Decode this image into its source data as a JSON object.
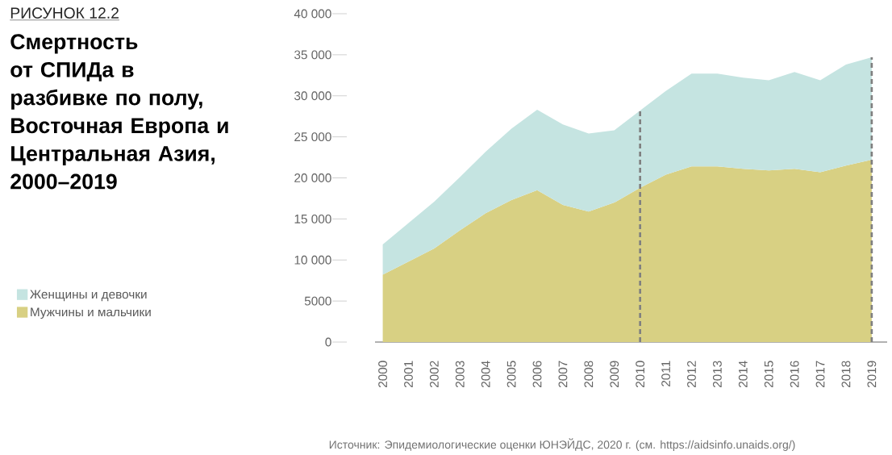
{
  "chart_data": {
    "type": "area",
    "stacked": true,
    "subtitle": "РИСУНОК 12.2",
    "title": "Смертность от СПИДа в разбивке по полу, Восточная Европа и Центральная Азия, 2000–2019",
    "x": [
      2000,
      2001,
      2002,
      2003,
      2004,
      2005,
      2006,
      2007,
      2008,
      2009,
      2010,
      2011,
      2012,
      2013,
      2014,
      2015,
      2016,
      2017,
      2018,
      2019
    ],
    "series": [
      {
        "name": "Мужчины и мальчики",
        "color": "#d8d083",
        "values": [
          8200,
          9800,
          11400,
          13600,
          15700,
          17300,
          18500,
          16700,
          15900,
          17000,
          18800,
          20400,
          21400,
          21400,
          21100,
          20900,
          21100,
          20700,
          21500,
          22200
        ]
      },
      {
        "name": "Женщины и девочки",
        "color": "#c5e4e1",
        "values": [
          3700,
          4700,
          5700,
          6500,
          7500,
          8700,
          9800,
          9800,
          9500,
          8800,
          9400,
          10200,
          11300,
          11300,
          11100,
          11000,
          11800,
          11200,
          12300,
          12500
        ]
      }
    ],
    "xlim": [
      1999.7,
      2019.6
    ],
    "xticks": [
      2000,
      2001,
      2002,
      2003,
      2004,
      2005,
      2006,
      2007,
      2008,
      2009,
      2010,
      2011,
      2012,
      2013,
      2014,
      2015,
      2016,
      2017,
      2018,
      2019
    ],
    "ylim": [
      0,
      40000
    ],
    "yticks": [
      0,
      5000,
      {
        "value": 10000,
        "label": "10 000"
      },
      {
        "value": 15000,
        "label": "15 000"
      },
      {
        "value": 20000,
        "label": "20 000"
      },
      {
        "value": 25000,
        "label": "25 000"
      },
      {
        "value": 30000,
        "label": "30 000"
      },
      {
        "value": 35000,
        "label": "35 000"
      },
      {
        "value": 40000,
        "label": "40 000"
      }
    ],
    "ref_lines": [
      {
        "axis": "x",
        "value": 2010,
        "color": "#808080",
        "line_style": "dashed"
      },
      {
        "axis": "x",
        "value": 2019,
        "color": "#808080",
        "line_style": "dashed"
      }
    ],
    "legend": "left",
    "grid": false,
    "annotations": [
      "Источник: Эпидемиологические оценки ЮНЭЙДС, 2020 г. (см. https://aidsinfo.unaids.org/)"
    ]
  }
}
